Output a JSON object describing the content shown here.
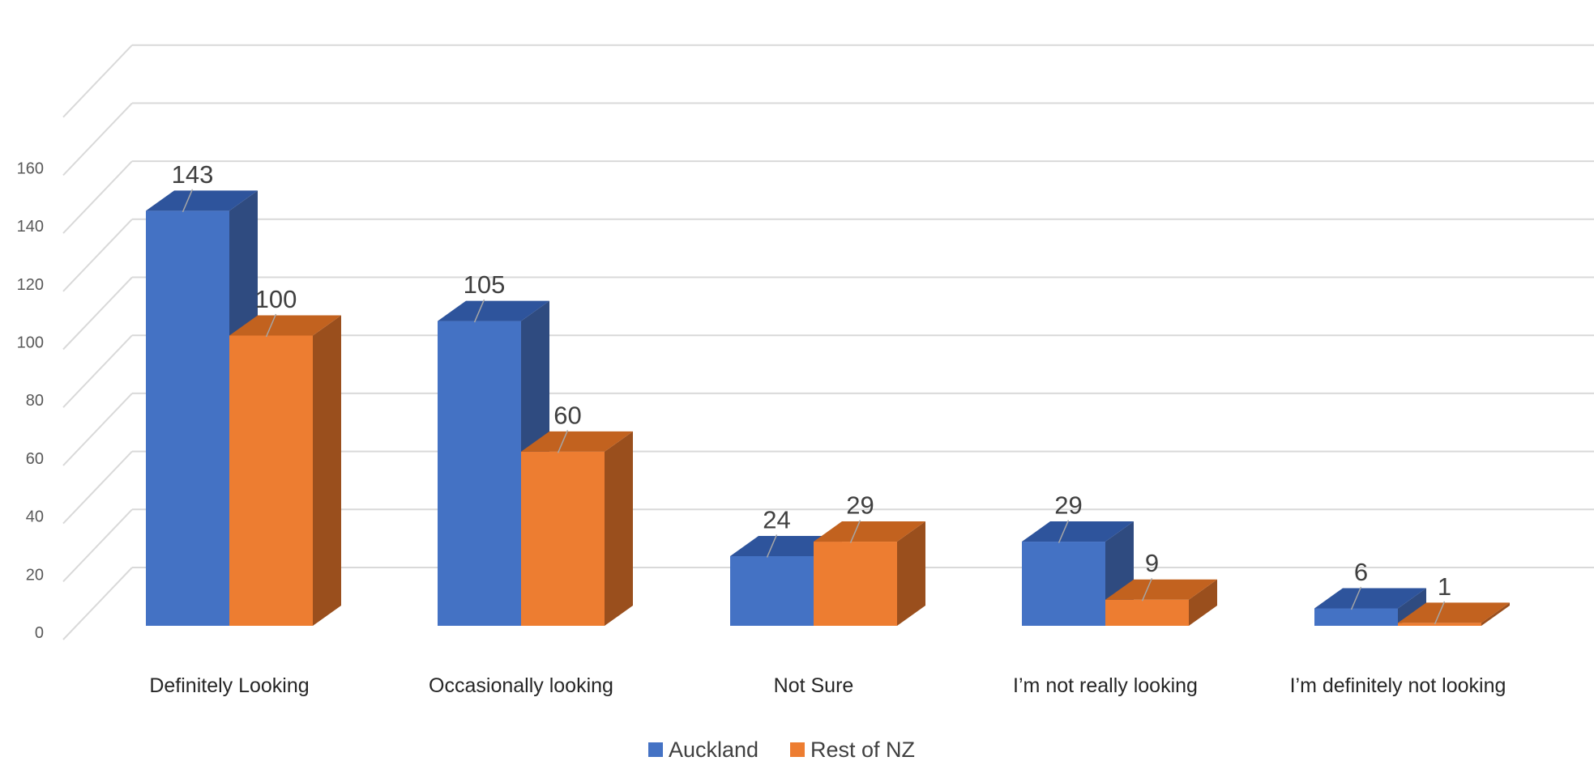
{
  "chart_data": {
    "type": "bar",
    "categories": [
      "Definitely Looking",
      "Occasionally looking",
      "Not Sure",
      "I’m not really looking",
      "I’m definitely not looking"
    ],
    "series": [
      {
        "name": "Auckland",
        "values": [
          143,
          105,
          24,
          29,
          6
        ],
        "color": "#4472C4",
        "side_color": "#2F4B80",
        "top_color": "#2E549C"
      },
      {
        "name": "Rest of NZ",
        "values": [
          100,
          60,
          29,
          9,
          1
        ],
        "color": "#ED7D31",
        "side_color": "#9A4F1D",
        "top_color": "#C2621F"
      }
    ],
    "title": "",
    "xlabel": "",
    "ylabel": "",
    "ylim": [
      0,
      160
    ],
    "yticks": [
      0,
      20,
      40,
      60,
      80,
      100,
      120,
      140,
      160
    ],
    "ytick_labels": [
      "0",
      "20",
      "40",
      "60",
      "80",
      "100",
      "120",
      "140",
      "160"
    ],
    "grid": true,
    "legend_position": "bottom",
    "style": "3d-clustered-column"
  }
}
